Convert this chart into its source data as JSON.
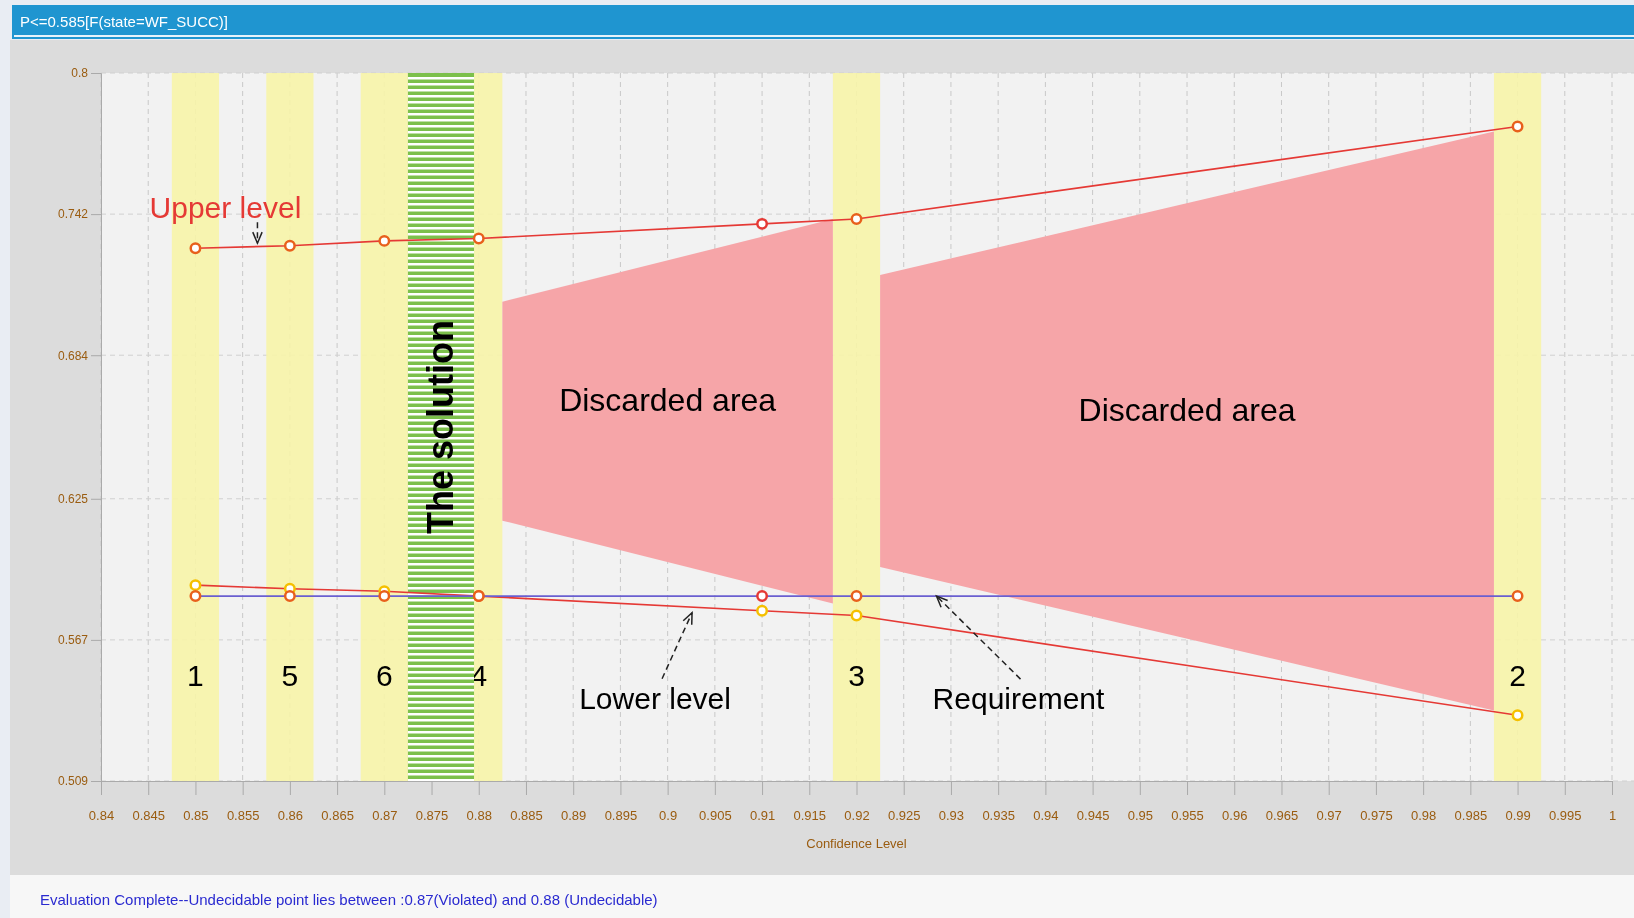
{
  "chart_data": {
    "type": "line",
    "title": "P<=0.585[F(state=WF_SUCC)]",
    "xlabel": "Confidence Level",
    "xlim": [
      0.84,
      1.0
    ],
    "xticks": [
      0.84,
      0.845,
      0.85,
      0.855,
      0.86,
      0.865,
      0.87,
      0.875,
      0.88,
      0.885,
      0.89,
      0.895,
      0.9,
      0.905,
      0.91,
      0.915,
      0.92,
      0.925,
      0.93,
      0.935,
      0.94,
      0.945,
      0.95,
      0.955,
      0.96,
      0.965,
      0.97,
      0.975,
      0.98,
      0.985,
      0.99,
      0.995,
      1
    ],
    "ylim": [
      0.509,
      0.8
    ],
    "yticks": [
      0.509,
      0.567,
      0.625,
      0.684,
      0.742,
      0.8
    ],
    "grid": true,
    "legend": false,
    "marker": "circle",
    "series": [
      {
        "type": "area",
        "marker": "none",
        "name": "Discarded area",
        "color": "#f6a5a8",
        "x": [
          0.8825,
          0.9175,
          0.9175,
          0.8825
        ],
        "values": [
          0.706,
          0.74,
          0.582,
          0.616
        ]
      },
      {
        "type": "area",
        "marker": "none",
        "name": "Discarded area",
        "color": "#f6a5a8",
        "x": [
          0.9225,
          0.9875,
          0.9875,
          0.9225
        ],
        "values": [
          0.717,
          0.776,
          0.538,
          0.597
        ]
      },
      {
        "name": "Upper level",
        "color": "#e53935",
        "colors": [
          "#e8601c",
          "#e8601c",
          "#e8601c",
          "#e8601c",
          "#e53935",
          "#e8601c",
          "#e8601c"
        ],
        "x": [
          0.85,
          0.86,
          0.87,
          0.88,
          0.91,
          0.92,
          0.99
        ],
        "values": [
          0.728,
          0.729,
          0.731,
          0.732,
          0.738,
          0.74,
          0.778
        ]
      },
      {
        "name": "Lower level",
        "color": "#e53935",
        "colors": [
          "#f5c000",
          "#f5c000",
          "#f5c000",
          "#e8601c",
          "#f5c000",
          "#f5c000",
          "#f5c000"
        ],
        "x": [
          0.85,
          0.86,
          0.87,
          0.88,
          0.91,
          0.92,
          0.99
        ],
        "values": [
          0.5895,
          0.588,
          0.587,
          0.585,
          0.579,
          0.577,
          0.536
        ]
      },
      {
        "name": "Requirement",
        "color": "#6a5fd0",
        "colors": [
          "#e8601c",
          "#e8601c",
          "#e8601c",
          "#e8601c",
          "#e53935",
          "#e8601c",
          "#e8601c"
        ],
        "x": [
          0.85,
          0.86,
          0.87,
          0.88,
          0.91,
          0.92,
          0.99
        ],
        "values": [
          0.585,
          0.585,
          0.585,
          0.585,
          0.585,
          0.585,
          0.585
        ]
      }
    ],
    "bands": [
      {
        "axis": "x",
        "from": 0.8475,
        "to": 0.8525,
        "label": "1",
        "color": "#f7f4a8"
      },
      {
        "axis": "x",
        "from": 0.8575,
        "to": 0.8625,
        "label": "5",
        "color": "#f7f4a8"
      },
      {
        "axis": "x",
        "from": 0.8675,
        "to": 0.8725,
        "label": "6",
        "color": "#f7f4a8"
      },
      {
        "axis": "x",
        "from": 0.8775,
        "to": 0.8825,
        "label": "4",
        "color": "#f7f4a8"
      },
      {
        "axis": "x",
        "from": 0.9175,
        "to": 0.9225,
        "label": "3",
        "color": "#f7f4a8"
      },
      {
        "axis": "x",
        "from": 0.9875,
        "to": 0.9925,
        "label": "2",
        "color": "#f7f4a8"
      },
      {
        "axis": "x",
        "from": 0.8725,
        "to": 0.8795,
        "label": "The solution",
        "color": "#7cc04b"
      }
    ],
    "annotations": [
      "Evaluation Complete--Undecidable point lies between :0.87(Violated) and 0.88 (Undecidable)"
    ]
  }
}
